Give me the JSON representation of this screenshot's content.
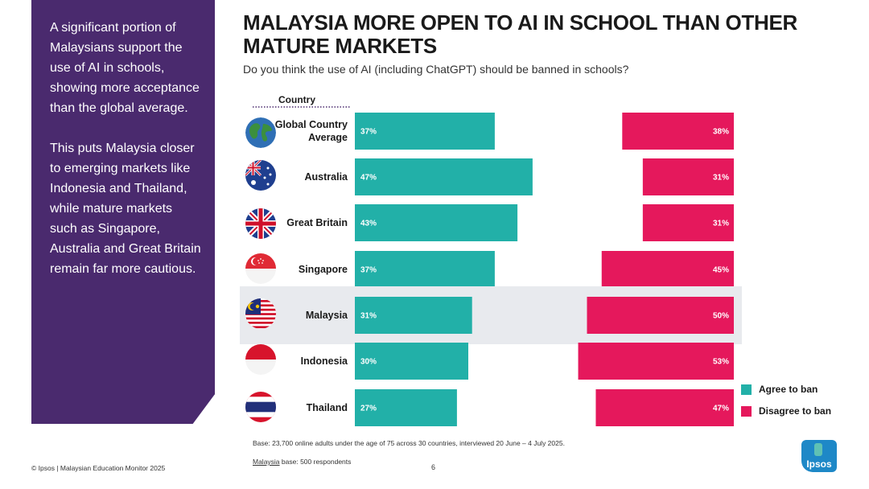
{
  "side_panel": {
    "paragraphs": [
      "A significant portion of Malaysians support the use of AI in schools, showing more acceptance than the global average.",
      "This puts Malaysia closer to emerging markets like Indonesia and Thailand, while mature markets such as Singapore, Australia and Great Britain remain far more cautious."
    ]
  },
  "title": "MALAYSIA MORE OPEN TO AI IN SCHOOL THAN OTHER MATURE MARKETS",
  "subtitle": "Do you think the use of AI (including ChatGPT) should be banned in schools?",
  "colors": {
    "agree": "#22b0a8",
    "disagree": "#e5185c",
    "highlight_row": "#e8eaee",
    "panel": "#4a2a6e"
  },
  "chart_data": {
    "type": "bar",
    "column_header": "Country",
    "categories": [
      "Global Country Average",
      "Australia",
      "Great Britain",
      "Singapore",
      "Malaysia",
      "Indonesia",
      "Thailand"
    ],
    "flags": [
      "globe-icon",
      "australia-flag-icon",
      "great-britain-flag-icon",
      "singapore-flag-icon",
      "malaysia-flag-icon",
      "indonesia-flag-icon",
      "thailand-flag-icon"
    ],
    "highlighted_category": "Malaysia",
    "series": [
      {
        "name": "Agree to ban",
        "values": [
          37,
          47,
          43,
          37,
          31,
          30,
          27
        ]
      },
      {
        "name": "Disagree to ban",
        "values": [
          38,
          31,
          31,
          45,
          50,
          53,
          47
        ]
      }
    ],
    "value_format": "percent"
  },
  "legend": {
    "agree_label": "Agree to ban",
    "disagree_label": "Disagree to ban"
  },
  "base_note": "Base: 23,700 online adults under the age of 75 across 30 countries, interviewed 20 June – 4 July 2025.",
  "malaysia_base": {
    "underlined": "Malaysia",
    "rest": " base: 500 respondents"
  },
  "footer": "© Ipsos | Malaysian Education Monitor 2025",
  "page_number": "6",
  "logo": {
    "text": "Ipsos"
  }
}
